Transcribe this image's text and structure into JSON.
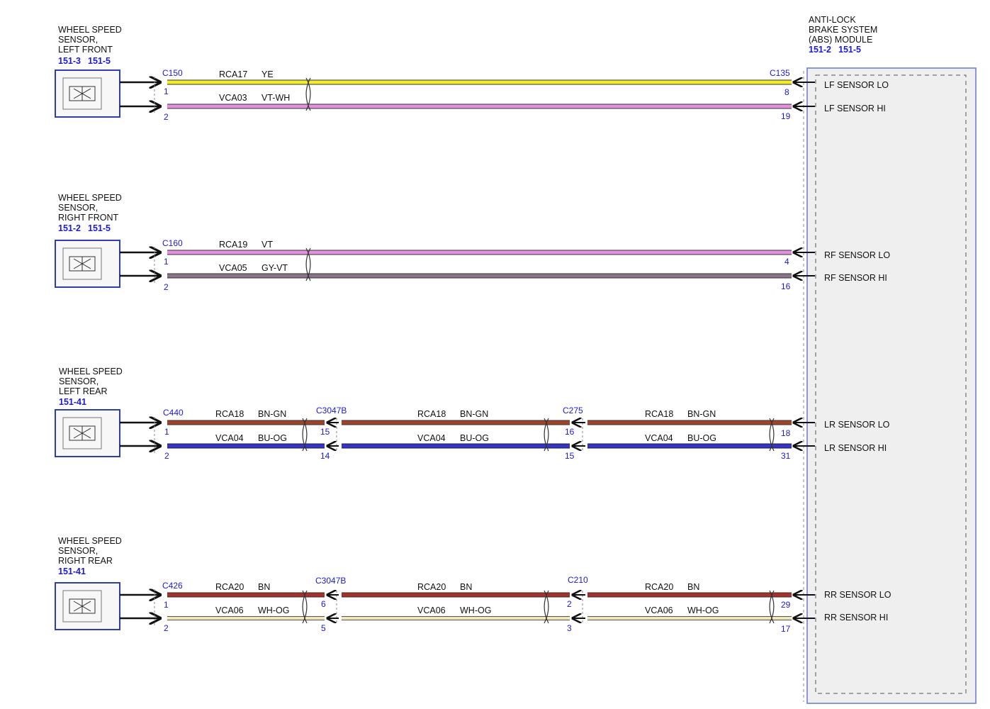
{
  "module": {
    "title_lines": [
      "ANTI-LOCK",
      "BRAKE SYSTEM",
      "(ABS) MODULE"
    ],
    "refs": [
      "151-2",
      "151-5"
    ],
    "connector": "C135"
  },
  "sensors": [
    {
      "title_lines": [
        "WHEEL SPEED",
        "SENSOR,",
        "LEFT FRONT"
      ],
      "refs": [
        "151-3",
        "151-5"
      ],
      "start_connector": "C150",
      "start_pins": [
        "1",
        "2"
      ],
      "segments": [
        {
          "circuit_lo": "RCA17",
          "color_lo": "YE",
          "circuit_hi": "VCA03",
          "color_hi": "VT-WH"
        }
      ],
      "inline_connectors": [],
      "module_pins": [
        "8",
        "19"
      ],
      "signals": [
        "LF SENSOR LO",
        "LF SENSOR HI"
      ],
      "wire_colors": [
        "#f4ec2a",
        "#e58fe0"
      ]
    },
    {
      "title_lines": [
        "WHEEL SPEED",
        "SENSOR,",
        "RIGHT FRONT"
      ],
      "refs": [
        "151-2",
        "151-5"
      ],
      "start_connector": "C160",
      "start_pins": [
        "1",
        "2"
      ],
      "segments": [
        {
          "circuit_lo": "RCA19",
          "color_lo": "VT",
          "circuit_hi": "VCA05",
          "color_hi": "GY-VT"
        }
      ],
      "inline_connectors": [],
      "module_pins": [
        "4",
        "16"
      ],
      "signals": [
        "RF SENSOR LO",
        "RF SENSOR HI"
      ],
      "wire_colors": [
        "#e58fe0",
        "#8a7488"
      ]
    },
    {
      "title_lines": [
        "WHEEL SPEED",
        "SENSOR,",
        "LEFT REAR"
      ],
      "refs": [
        "151-41"
      ],
      "start_connector": "C440",
      "start_pins": [
        "1",
        "2"
      ],
      "segments": [
        {
          "circuit_lo": "RCA18",
          "color_lo": "BN-GN",
          "circuit_hi": "VCA04",
          "color_hi": "BU-OG"
        },
        {
          "circuit_lo": "RCA18",
          "color_lo": "BN-GN",
          "circuit_hi": "VCA04",
          "color_hi": "BU-OG"
        },
        {
          "circuit_lo": "RCA18",
          "color_lo": "BN-GN",
          "circuit_hi": "VCA04",
          "color_hi": "BU-OG"
        }
      ],
      "inline_connectors": [
        {
          "name": "C3047B",
          "pins": [
            "15",
            "14"
          ]
        },
        {
          "name": "C275",
          "pins": [
            "16",
            "15"
          ]
        }
      ],
      "module_pins": [
        "18",
        "31"
      ],
      "signals": [
        "LR SENSOR LO",
        "LR SENSOR HI"
      ],
      "wire_colors": [
        "#a0432a",
        "#3434cc"
      ]
    },
    {
      "title_lines": [
        "WHEEL SPEED",
        "SENSOR,",
        "RIGHT REAR"
      ],
      "refs": [
        "151-41"
      ],
      "start_connector": "C426",
      "start_pins": [
        "1",
        "2"
      ],
      "segments": [
        {
          "circuit_lo": "RCA20",
          "color_lo": "BN",
          "circuit_hi": "VCA06",
          "color_hi": "WH-OG"
        },
        {
          "circuit_lo": "RCA20",
          "color_lo": "BN",
          "circuit_hi": "VCA06",
          "color_hi": "WH-OG"
        },
        {
          "circuit_lo": "RCA20",
          "color_lo": "BN",
          "circuit_hi": "VCA06",
          "color_hi": "WH-OG"
        }
      ],
      "inline_connectors": [
        {
          "name": "C3047B",
          "pins": [
            "6",
            "5"
          ]
        },
        {
          "name": "C210",
          "pins": [
            "2",
            "3"
          ]
        }
      ],
      "module_pins": [
        "29",
        "17"
      ],
      "signals": [
        "RR SENSOR LO",
        "RR SENSOR HI"
      ],
      "wire_colors": [
        "#a8302a",
        "#f0e7b8"
      ]
    }
  ]
}
